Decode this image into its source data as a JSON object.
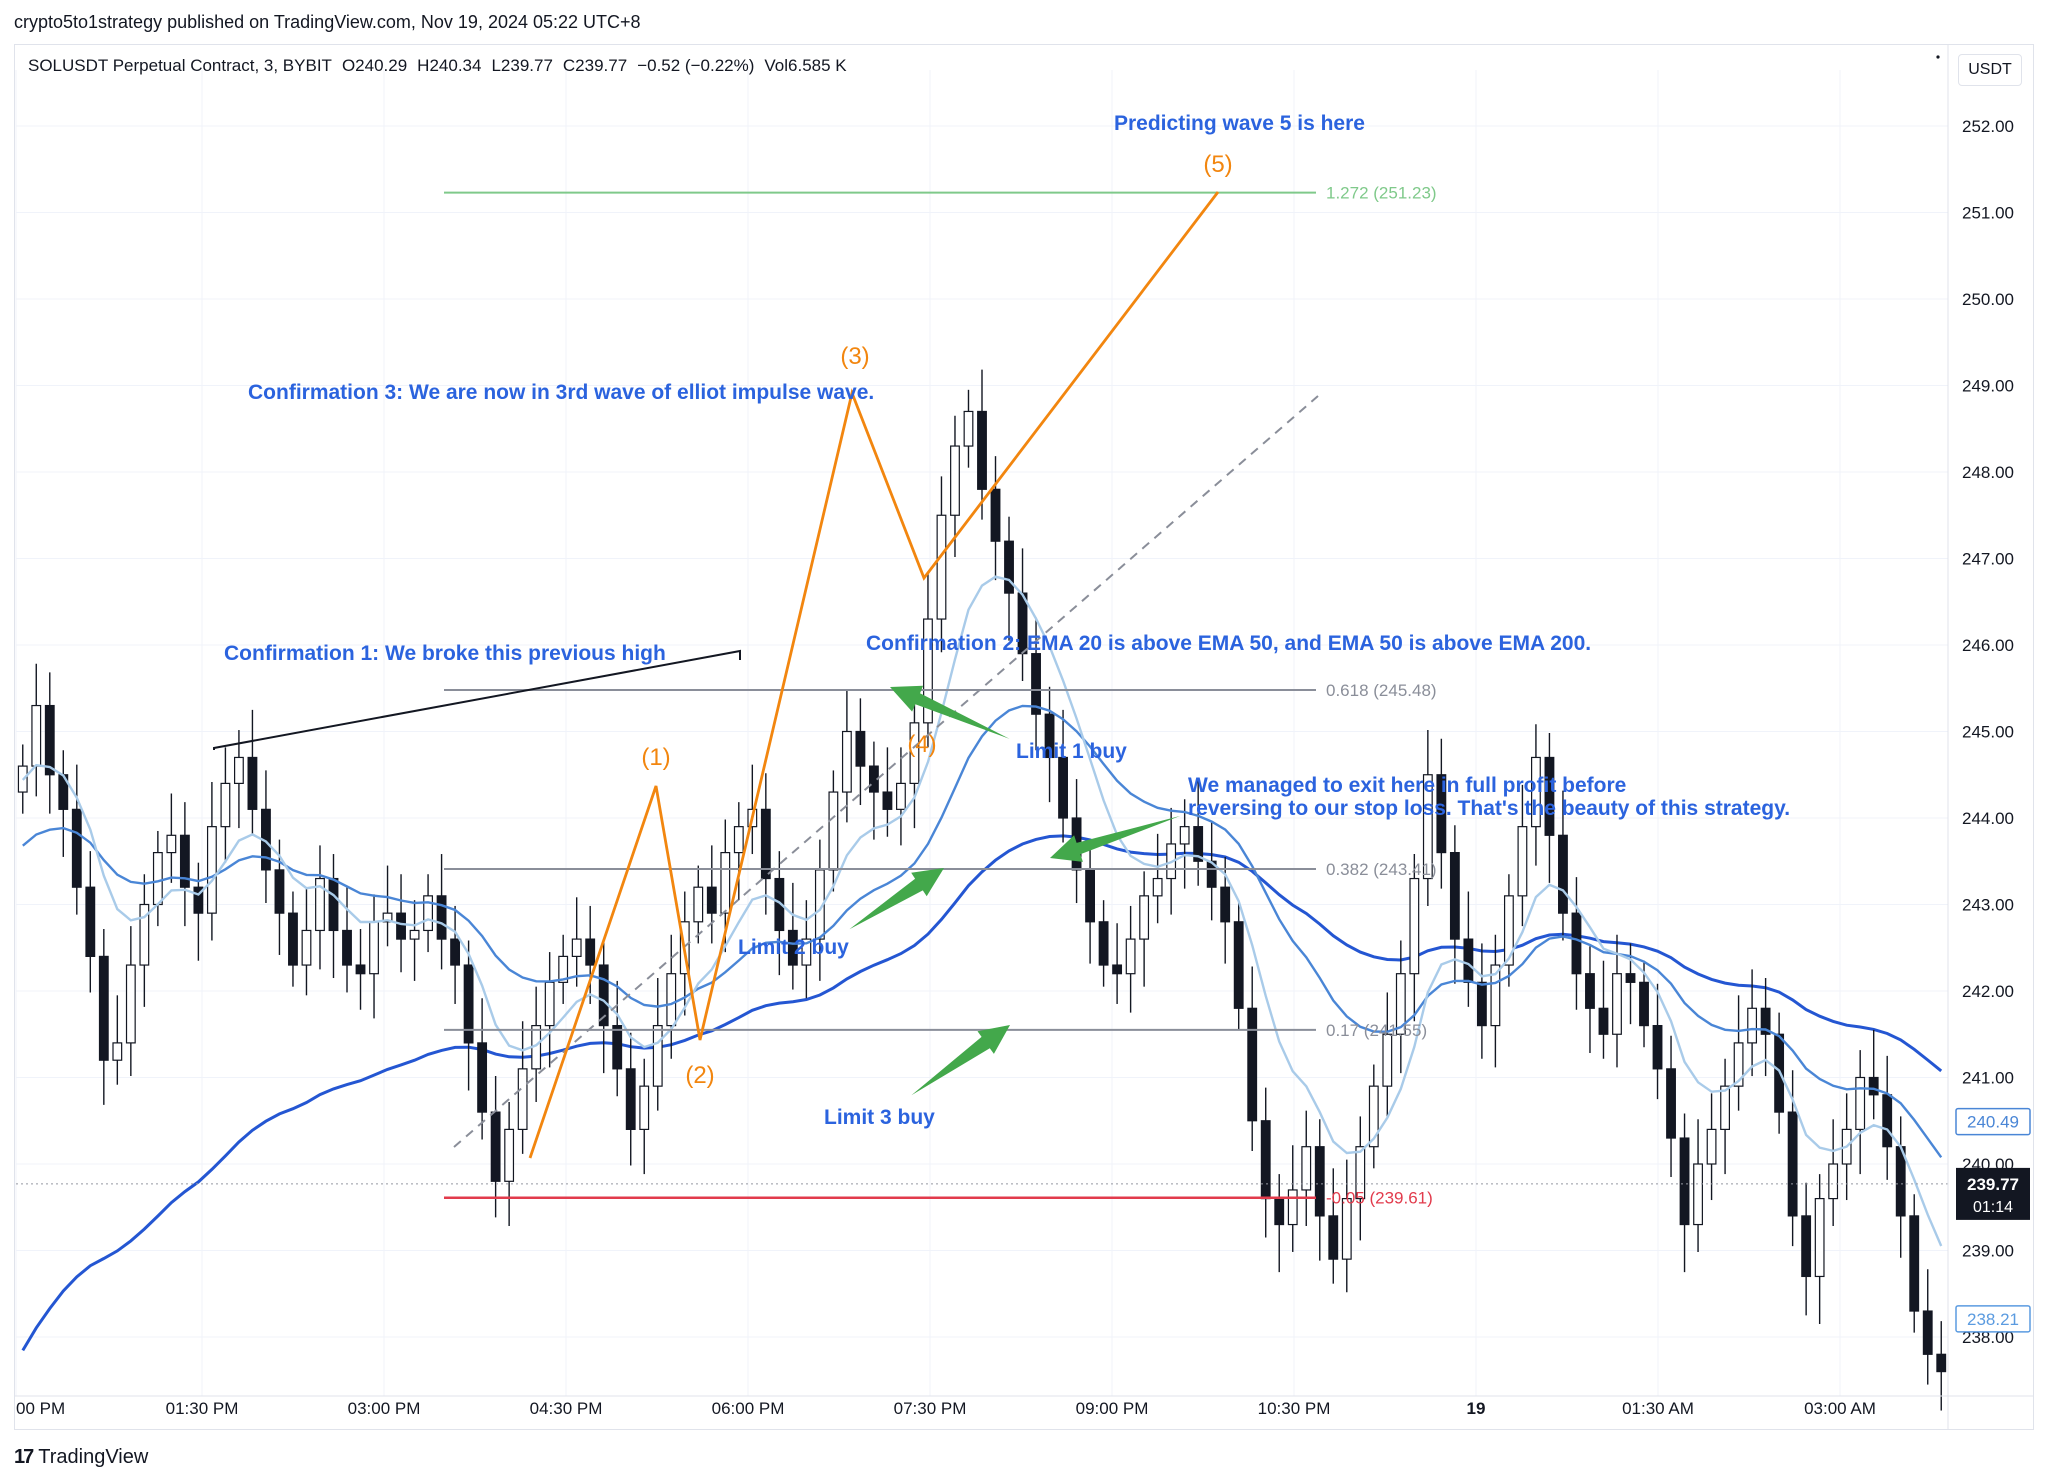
{
  "header": {
    "publisher_line": "crypto5to1strategy published on TradingView.com, Nov 19, 2024 05:22 UTC+8"
  },
  "legend": {
    "symbol": "SOLUSDT Perpetual Contract, 3, BYBIT",
    "open": "O240.29",
    "high": "H240.34",
    "low": "L239.77",
    "close": "C239.77",
    "change": "−0.52 (−0.22%)",
    "volume": "Vol6.585 K"
  },
  "currency_button": "USDT",
  "footer": {
    "brand": "TradingView",
    "logo_glyph": "17"
  },
  "colors": {
    "candle": "#131722",
    "ema20": "#a9cbe9",
    "ema50": "#4a86d6",
    "ema200": "#2456d2",
    "wave": "#f2860f",
    "annotation": "#2b63de",
    "arrow": "#43a84b",
    "fib_1272": "#7fc98a",
    "fib_neg": "#e23b4c",
    "fib_gray": "#8a8e99"
  },
  "chart_data": {
    "type": "candlestick",
    "ylim": [
      237.4,
      253.0
    ],
    "y_ticks": [
      "252.00",
      "251.00",
      "250.00",
      "249.00",
      "248.00",
      "247.00",
      "246.00",
      "245.00",
      "244.00",
      "243.00",
      "242.00",
      "241.00",
      "240.00",
      "239.00",
      "238.00"
    ],
    "x_ticks": [
      "00 PM",
      "01:30 PM",
      "03:00 PM",
      "04:30 PM",
      "06:00 PM",
      "07:30 PM",
      "09:00 PM",
      "10:30 PM",
      "19",
      "01:30 AM",
      "03:00 AM"
    ],
    "price_labels": [
      {
        "text": "240.49",
        "price": 240.49,
        "style": "ema50"
      },
      {
        "text": "239.77",
        "time": "01:14",
        "price": 239.77,
        "style": "last"
      },
      {
        "text": "238.21",
        "price": 238.21,
        "style": "ema20"
      }
    ],
    "last_price": 239.77,
    "fib_levels": [
      {
        "label": "1.272 (251.23)",
        "price": 251.23,
        "color": "#7fc98a"
      },
      {
        "label": "0.618 (245.48)",
        "price": 245.48,
        "color": "#8a8e99"
      },
      {
        "label": "0.382 (243.41)",
        "price": 243.41,
        "color": "#8a8e99"
      },
      {
        "label": "0.17 (241.55)",
        "price": 241.55,
        "color": "#8a8e99"
      },
      {
        "label": "-0.05 (239.61)",
        "price": 239.61,
        "color": "#e23b4c"
      }
    ],
    "wave_labels": [
      "(1)",
      "(2)",
      "(3)",
      "(4)",
      "(5)"
    ],
    "annotations": {
      "c1": "Confirmation 1: We broke this previous high",
      "c2": "Confirmation 2: EMA 20 is above EMA 50, and EMA 50 is above EMA 200.",
      "c3": "Confirmation 3: We are now in 3rd wave of elliot impulse wave.",
      "w5": "Predicting wave 5 is here",
      "l1": "Limit 1 buy",
      "l2": "Limit 2 buy",
      "l3": "Limit 3 buy",
      "exit1": "We managed to exit here in full profit before",
      "exit2": "reversing to our stop loss. That's the beauty of this strategy."
    },
    "candles_close_path": [
      244.6,
      245.3,
      244.5,
      244.1,
      243.2,
      242.4,
      241.2,
      241.4,
      242.3,
      243.0,
      243.6,
      243.8,
      243.2,
      242.9,
      243.9,
      244.4,
      244.7,
      244.1,
      243.4,
      242.9,
      242.3,
      242.7,
      243.3,
      242.7,
      242.3,
      242.2,
      242.8,
      242.9,
      242.6,
      242.7,
      243.1,
      242.6,
      242.3,
      241.4,
      240.6,
      239.8,
      240.4,
      241.1,
      241.6,
      242.1,
      242.4,
      242.6,
      242.3,
      241.6,
      241.1,
      240.4,
      240.9,
      241.6,
      242.2,
      242.8,
      243.2,
      242.9,
      243.6,
      243.9,
      244.1,
      243.3,
      242.7,
      242.3,
      242.6,
      243.4,
      244.3,
      245.0,
      244.6,
      244.3,
      244.1,
      244.4,
      245.1,
      246.3,
      247.5,
      248.3,
      248.7,
      247.8,
      247.2,
      246.6,
      245.9,
      245.2,
      244.7,
      244.0,
      243.4,
      242.8,
      242.3,
      242.2,
      242.6,
      243.1,
      243.3,
      243.7,
      243.9,
      243.5,
      243.2,
      242.8,
      241.8,
      240.5,
      239.6,
      239.3,
      239.7,
      240.2,
      239.4,
      238.9,
      239.6,
      240.2,
      240.9,
      241.5,
      242.2,
      243.3,
      244.5,
      243.6,
      242.6,
      242.1,
      241.6,
      242.3,
      243.1,
      243.9,
      244.7,
      243.8,
      242.9,
      242.2,
      241.8,
      241.5,
      242.2,
      242.1,
      241.6,
      241.1,
      240.3,
      239.3,
      240.0,
      240.4,
      240.9,
      241.4,
      241.8,
      241.5,
      240.6,
      239.4,
      238.7,
      239.6,
      240.0,
      240.4,
      241.0,
      240.8,
      240.2,
      239.4,
      238.3,
      237.8,
      237.6
    ]
  }
}
